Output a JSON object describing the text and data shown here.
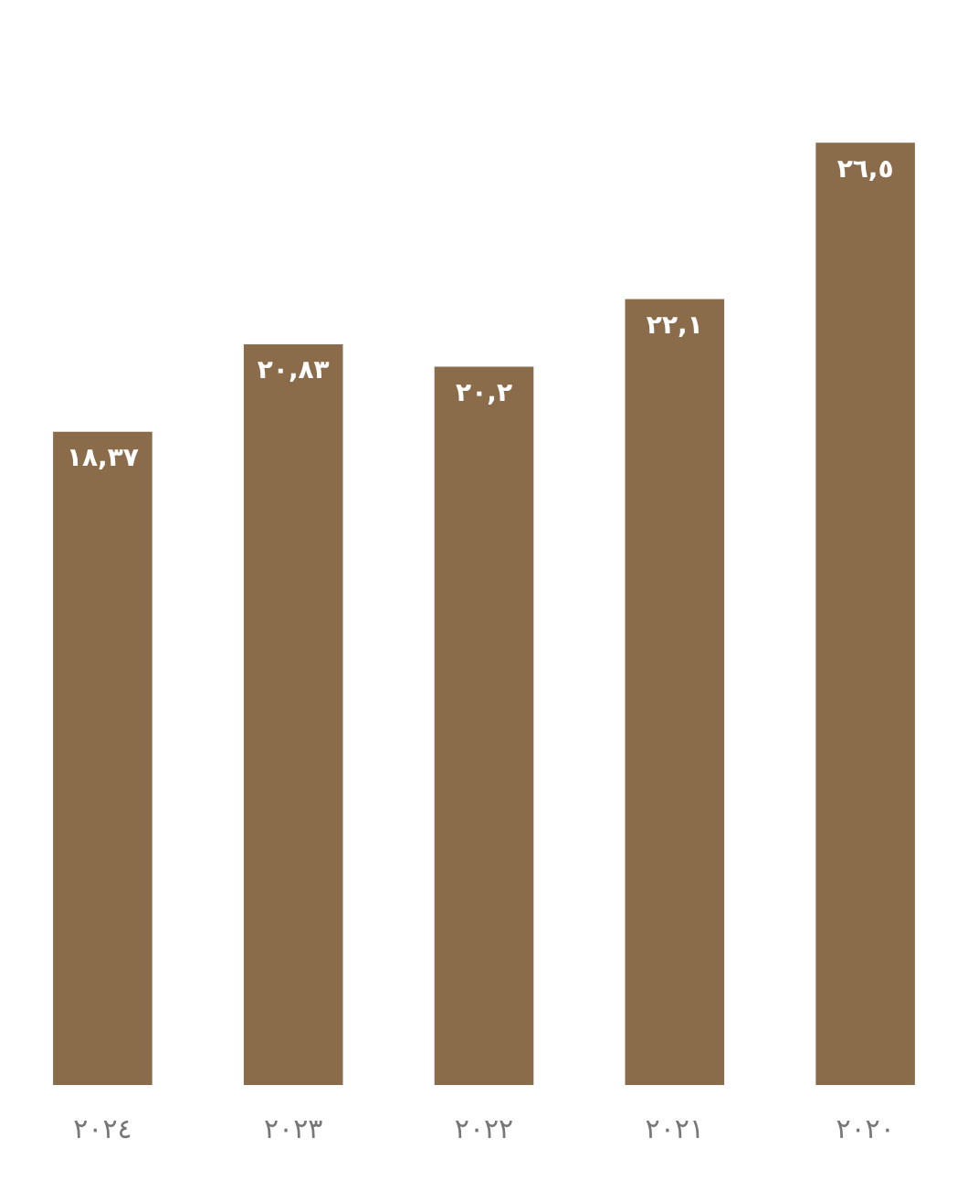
{
  "chart_data": {
    "type": "bar",
    "categories": [
      "٢٠٢٤",
      "٢٠٢٣",
      "٢٠٢٢",
      "٢٠٢١",
      "٢٠٢٠"
    ],
    "values": [
      18.37,
      20.83,
      20.2,
      22.1,
      26.5
    ],
    "value_labels": [
      "١٨,٣٧",
      "٢٠,٨٣",
      "٢٠,٢",
      "٢٢,١",
      "٢٦,٥"
    ],
    "color": "#8b6c4a",
    "grid": false,
    "legend": false,
    "tick_labels": "x"
  }
}
